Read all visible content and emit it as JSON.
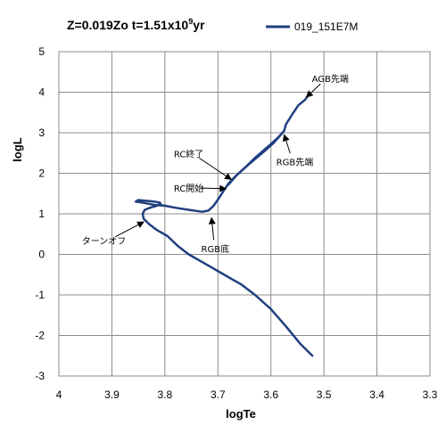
{
  "chart_data": {
    "type": "line",
    "title_parts": [
      "Z=0.019Zo t=1.51x10",
      "9",
      "yr"
    ],
    "xlabel": "logTe",
    "ylabel": "logL",
    "xlim": [
      4,
      3.3
    ],
    "ylim": [
      -3,
      5
    ],
    "x_inverted": true,
    "x_ticks": [
      "4",
      "3.9",
      "3.8",
      "3.7",
      "3.6",
      "3.5",
      "3.4",
      "3.3"
    ],
    "y_ticks": [
      "5",
      "4",
      "3",
      "2",
      "1",
      "0",
      "-1",
      "-2",
      "-3"
    ],
    "grid": true,
    "legend": "top-right",
    "series": [
      {
        "name": "019_151E7M",
        "color": "#1f3f7f",
        "x": [
          3.522,
          3.545,
          3.57,
          3.6,
          3.63,
          3.655,
          3.675,
          3.695,
          3.715,
          3.735,
          3.755,
          3.775,
          3.795,
          3.815,
          3.83,
          3.84,
          3.842,
          3.838,
          3.828,
          3.815,
          3.808,
          3.81,
          3.82,
          3.835,
          3.85,
          3.855,
          3.84,
          3.82,
          3.8,
          3.78,
          3.755,
          3.73,
          3.718,
          3.708,
          3.7,
          3.69,
          3.68,
          3.665,
          3.648,
          3.63,
          3.615,
          3.6,
          3.585,
          3.575,
          3.572,
          3.56,
          3.548,
          3.535,
          3.532
        ],
        "y": [
          -2.5,
          -2.2,
          -1.8,
          -1.35,
          -1.0,
          -0.75,
          -0.6,
          -0.45,
          -0.3,
          -0.15,
          0.0,
          0.2,
          0.45,
          0.6,
          0.75,
          0.88,
          1.0,
          1.1,
          1.15,
          1.2,
          1.25,
          1.28,
          1.3,
          1.32,
          1.34,
          1.3,
          1.27,
          1.22,
          1.2,
          1.15,
          1.1,
          1.05,
          1.08,
          1.2,
          1.35,
          1.55,
          1.75,
          1.95,
          2.15,
          2.38,
          2.55,
          2.72,
          2.9,
          3.05,
          3.2,
          3.45,
          3.68,
          3.82,
          3.88
        ]
      },
      {
        "name": "",
        "color": "#1f3f7f",
        "x": [
          3.68,
          3.665,
          3.648,
          3.63,
          3.612,
          3.595,
          3.578
        ],
        "y": [
          1.72,
          1.95,
          2.15,
          2.35,
          2.55,
          2.75,
          3.0
        ]
      }
    ],
    "annotations": [
      {
        "text": "AGB先端",
        "x": 3.488,
        "y": 4.25,
        "arrow_to": [
          3.533,
          3.88
        ]
      },
      {
        "text": "RC終了",
        "x": 3.755,
        "y": 2.4,
        "arrow_to": [
          3.675,
          1.85
        ]
      },
      {
        "text": "RGB先端",
        "x": 3.555,
        "y": 2.2,
        "arrow_to": [
          3.575,
          2.95
        ]
      },
      {
        "text": "RC開始",
        "x": 3.755,
        "y": 1.55,
        "arrow_to": [
          3.685,
          1.62
        ]
      },
      {
        "text": "ターンオフ",
        "x": 3.915,
        "y": 0.25,
        "arrow_to": [
          3.84,
          0.8
        ]
      },
      {
        "text": "RGB底",
        "x": 3.705,
        "y": 0.05,
        "arrow_to": [
          3.712,
          0.9
        ]
      }
    ]
  }
}
